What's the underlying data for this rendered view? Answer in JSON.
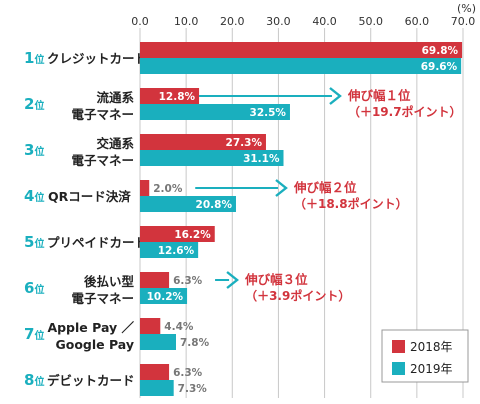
{
  "chart_data": {
    "type": "bar",
    "orientation": "horizontal",
    "unit": "(%)",
    "xlim": [
      0,
      70
    ],
    "xticks": [
      "0.0",
      "10.0",
      "20.0",
      "30.0",
      "40.0",
      "50.0",
      "60.0",
      "70.0"
    ],
    "grid": true,
    "legend": "bottom-right",
    "categories": [
      {
        "rank": "1",
        "rank_suffix": "位",
        "lines": [
          "クレジットカード"
        ]
      },
      {
        "rank": "2",
        "rank_suffix": "位",
        "lines": [
          "流通系",
          "電子マネー"
        ]
      },
      {
        "rank": "3",
        "rank_suffix": "位",
        "lines": [
          "交通系",
          "電子マネー"
        ]
      },
      {
        "rank": "4",
        "rank_suffix": "位",
        "lines": [
          "QRコード決済"
        ]
      },
      {
        "rank": "5",
        "rank_suffix": "位",
        "lines": [
          "プリペイドカード"
        ]
      },
      {
        "rank": "6",
        "rank_suffix": "位",
        "lines": [
          "後払い型",
          "電子マネー"
        ]
      },
      {
        "rank": "7",
        "rank_suffix": "位",
        "lines": [
          "Apple Pay ／",
          "Google Pay"
        ]
      },
      {
        "rank": "8",
        "rank_suffix": "位",
        "lines": [
          "デビットカード"
        ]
      }
    ],
    "series": [
      {
        "name": "2018年",
        "color": "#d2343d",
        "values": [
          69.8,
          12.8,
          27.3,
          2.0,
          16.2,
          6.3,
          4.4,
          6.3
        ],
        "labels": [
          "69.8%",
          "12.8%",
          "27.3%",
          "2.0%",
          "16.2%",
          "6.3%",
          "4.4%",
          "6.3%"
        ]
      },
      {
        "name": "2019年",
        "color": "#1aafbe",
        "values": [
          69.6,
          32.5,
          31.1,
          20.8,
          12.6,
          10.2,
          7.8,
          7.3
        ],
        "labels": [
          "69.6%",
          "32.5%",
          "31.1%",
          "20.8%",
          "12.6%",
          "10.2%",
          "7.8%",
          "7.3%"
        ]
      }
    ],
    "annotations": [
      {
        "category_index": 1,
        "line1": "伸び幅１位",
        "line2": "（＋19.7ポイント）"
      },
      {
        "category_index": 3,
        "line1": "伸び幅２位",
        "line2": "（＋18.8ポイント）"
      },
      {
        "category_index": 5,
        "line1": "伸び幅３位",
        "line2": "（＋3.9ポイント）"
      }
    ],
    "colors": {
      "rank": "#1aafbe",
      "annotation": "#d2343d",
      "grid": "#c8c8c8"
    }
  }
}
